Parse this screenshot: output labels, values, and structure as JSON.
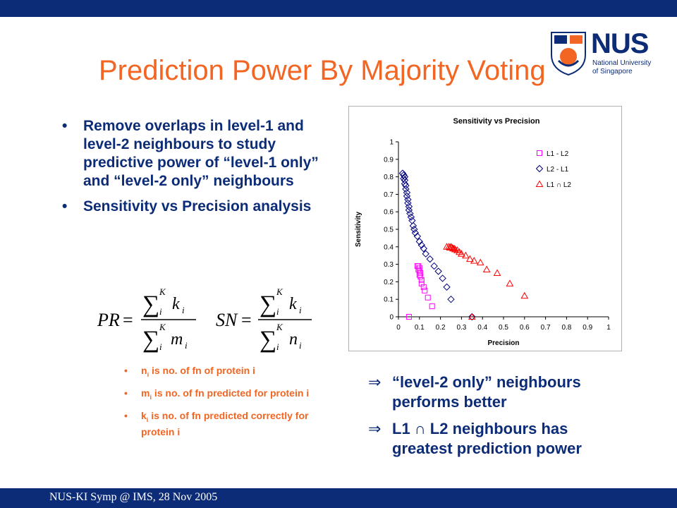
{
  "title": "Prediction Power By Majority Voting",
  "logo": {
    "name": "NUS",
    "line1": "National University",
    "line2": "of Singapore"
  },
  "bullets": [
    "Remove overlaps in level-1 and level-2 neighbours to study predictive power of “level-1 only” and “level-2 only” neighbours",
    "Sensitivity vs Precision analysis"
  ],
  "formula": {
    "pr_lhs": "PR",
    "sn_lhs": "SN",
    "equals": "=",
    "sum": "∑",
    "upper": "K",
    "index": "i",
    "pr_num": "k",
    "pr_den": "m",
    "sn_num": "k",
    "sn_den": "n"
  },
  "definitions": [
    {
      "sym": "n",
      "sub": "i",
      "text": " is no. of fn of protein i"
    },
    {
      "sym": "m",
      "sub": "i",
      "text": " is no. of fn predicted for protein i"
    },
    {
      "sym": "k",
      "sub": "i",
      "text": " is no. of fn predicted correctly for protein i"
    }
  ],
  "conclusions": [
    "“level-2 only” neighbours performs better",
    "L1 ∩ L2 neighbours has greatest prediction power"
  ],
  "footer": "NUS-KI Symp @ IMS, 28 Nov 2005",
  "colors": {
    "title": "#f26522",
    "text": "#0c2c78",
    "bar": "#0c2c78",
    "l1": "#ff00ff",
    "l2": "#000080",
    "both": "#ff0000"
  },
  "chart_data": {
    "type": "scatter",
    "title": "Sensitivity vs Precision",
    "xlabel": "Precision",
    "ylabel": "Sensitivity",
    "xlim": [
      0,
      1
    ],
    "ylim": [
      0,
      1
    ],
    "xticks": [
      "0",
      "0.1",
      "0.2",
      "0.3",
      "0.4",
      "0.5",
      "0.6",
      "0.7",
      "0.8",
      "0.9",
      "1"
    ],
    "yticks": [
      "0",
      "0.1",
      "0.2",
      "0.3",
      "0.4",
      "0.5",
      "0.6",
      "0.7",
      "0.8",
      "0.9",
      "1"
    ],
    "grid": false,
    "legend": "top-right",
    "series": [
      {
        "name": "L1 - L2",
        "marker": "square",
        "color": "#ff00ff",
        "points": [
          [
            0.05,
            0.0
          ],
          [
            0.09,
            0.29
          ],
          [
            0.095,
            0.29
          ],
          [
            0.1,
            0.28
          ],
          [
            0.095,
            0.27
          ],
          [
            0.1,
            0.26
          ],
          [
            0.105,
            0.25
          ],
          [
            0.1,
            0.24
          ],
          [
            0.105,
            0.23
          ],
          [
            0.11,
            0.21
          ],
          [
            0.11,
            0.19
          ],
          [
            0.12,
            0.17
          ],
          [
            0.125,
            0.15
          ],
          [
            0.14,
            0.11
          ],
          [
            0.16,
            0.06
          ]
        ]
      },
      {
        "name": "L2 - L1",
        "marker": "diamond",
        "color": "#000080",
        "points": [
          [
            0.02,
            0.82
          ],
          [
            0.025,
            0.81
          ],
          [
            0.03,
            0.8
          ],
          [
            0.025,
            0.79
          ],
          [
            0.03,
            0.78
          ],
          [
            0.03,
            0.76
          ],
          [
            0.035,
            0.75
          ],
          [
            0.035,
            0.73
          ],
          [
            0.04,
            0.71
          ],
          [
            0.04,
            0.69
          ],
          [
            0.045,
            0.67
          ],
          [
            0.045,
            0.65
          ],
          [
            0.05,
            0.63
          ],
          [
            0.05,
            0.61
          ],
          [
            0.055,
            0.59
          ],
          [
            0.06,
            0.57
          ],
          [
            0.065,
            0.55
          ],
          [
            0.07,
            0.52
          ],
          [
            0.075,
            0.5
          ],
          [
            0.08,
            0.48
          ],
          [
            0.09,
            0.46
          ],
          [
            0.1,
            0.43
          ],
          [
            0.11,
            0.41
          ],
          [
            0.12,
            0.39
          ],
          [
            0.13,
            0.36
          ],
          [
            0.15,
            0.33
          ],
          [
            0.17,
            0.29
          ],
          [
            0.19,
            0.26
          ],
          [
            0.21,
            0.22
          ],
          [
            0.23,
            0.17
          ],
          [
            0.25,
            0.1
          ],
          [
            0.35,
            0.0
          ]
        ]
      },
      {
        "name": "L1 ∩ L2",
        "marker": "triangle",
        "color": "#ff0000",
        "points": [
          [
            0.35,
            0.0
          ],
          [
            0.23,
            0.4
          ],
          [
            0.24,
            0.4
          ],
          [
            0.245,
            0.395
          ],
          [
            0.25,
            0.4
          ],
          [
            0.255,
            0.395
          ],
          [
            0.26,
            0.39
          ],
          [
            0.265,
            0.39
          ],
          [
            0.27,
            0.385
          ],
          [
            0.28,
            0.38
          ],
          [
            0.29,
            0.37
          ],
          [
            0.3,
            0.36
          ],
          [
            0.32,
            0.35
          ],
          [
            0.34,
            0.33
          ],
          [
            0.36,
            0.32
          ],
          [
            0.39,
            0.31
          ],
          [
            0.42,
            0.27
          ],
          [
            0.47,
            0.25
          ],
          [
            0.53,
            0.19
          ],
          [
            0.6,
            0.12
          ]
        ]
      }
    ]
  }
}
